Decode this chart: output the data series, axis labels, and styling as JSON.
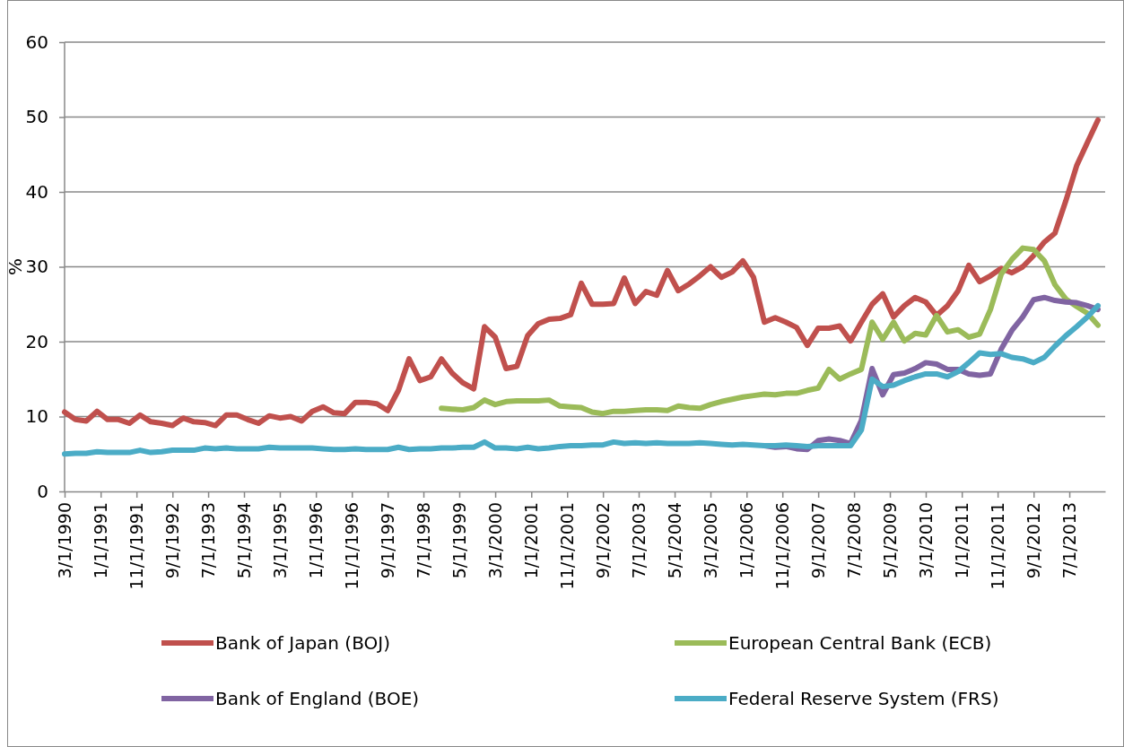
{
  "chart_data": {
    "type": "line",
    "ylabel": "%",
    "x": [
      "1990-03",
      "1990-06",
      "1990-09",
      "1990-12",
      "1991-03",
      "1991-06",
      "1991-09",
      "1991-12",
      "1992-03",
      "1992-06",
      "1992-09",
      "1992-12",
      "1993-03",
      "1993-06",
      "1993-09",
      "1993-12",
      "1994-03",
      "1994-06",
      "1994-09",
      "1994-12",
      "1995-03",
      "1995-06",
      "1995-09",
      "1995-12",
      "1996-03",
      "1996-06",
      "1996-09",
      "1996-12",
      "1997-03",
      "1997-06",
      "1997-09",
      "1997-12",
      "1998-03",
      "1998-06",
      "1998-09",
      "1998-12",
      "1999-03",
      "1999-06",
      "1999-09",
      "1999-12",
      "2000-03",
      "2000-06",
      "2000-09",
      "2000-12",
      "2001-03",
      "2001-06",
      "2001-09",
      "2001-12",
      "2002-03",
      "2002-06",
      "2002-09",
      "2002-12",
      "2003-03",
      "2003-06",
      "2003-09",
      "2003-12",
      "2004-03",
      "2004-06",
      "2004-09",
      "2004-12",
      "2005-03",
      "2005-06",
      "2005-09",
      "2005-12",
      "2006-03",
      "2006-06",
      "2006-09",
      "2006-12",
      "2007-03",
      "2007-06",
      "2007-09",
      "2007-12",
      "2008-03",
      "2008-06",
      "2008-09",
      "2008-12",
      "2009-03",
      "2009-06",
      "2009-09",
      "2009-12",
      "2010-03",
      "2010-06",
      "2010-09",
      "2010-12",
      "2011-03",
      "2011-06",
      "2011-09",
      "2011-12",
      "2012-03",
      "2012-06",
      "2012-09",
      "2012-12",
      "2013-03",
      "2013-06",
      "2013-09",
      "2013-12",
      "2014-03"
    ],
    "series": [
      {
        "name": "Bank of Japan (BOJ)",
        "color": "#c0504d",
        "values": [
          10.6,
          9.6,
          9.4,
          10.7,
          9.6,
          9.6,
          9.1,
          10.2,
          9.3,
          9.1,
          8.8,
          9.8,
          9.3,
          9.2,
          8.8,
          10.2,
          10.2,
          9.6,
          9.1,
          10.1,
          9.8,
          10.0,
          9.4,
          10.7,
          11.3,
          10.5,
          10.4,
          11.9,
          11.9,
          11.7,
          10.8,
          13.5,
          17.7,
          14.8,
          15.3,
          17.7,
          15.8,
          14.5,
          13.7,
          22.0,
          20.6,
          16.4,
          16.7,
          20.8,
          22.4,
          23.0,
          23.1,
          23.6,
          27.8,
          25.0,
          25.0,
          25.1,
          28.5,
          25.1,
          26.7,
          26.2,
          29.5,
          26.8,
          27.7,
          28.8,
          30.0,
          28.6,
          29.3,
          30.8,
          28.6,
          22.6,
          23.2,
          22.6,
          21.9,
          19.5,
          21.8,
          21.8,
          22.1,
          20.1,
          22.6,
          25.0,
          26.4,
          23.3,
          24.8,
          25.9,
          25.3,
          23.5,
          24.8,
          26.8,
          30.2,
          28.0,
          28.8,
          29.8,
          29.2,
          30.0,
          31.5,
          33.3,
          34.5,
          38.8,
          43.5,
          46.6,
          49.6
        ]
      },
      {
        "name": "European Central Bank (ECB)",
        "color": "#9bbb59",
        "values": [
          null,
          null,
          null,
          null,
          null,
          null,
          null,
          null,
          null,
          null,
          null,
          null,
          null,
          null,
          null,
          null,
          null,
          null,
          null,
          null,
          null,
          null,
          null,
          null,
          null,
          null,
          null,
          null,
          null,
          null,
          null,
          null,
          null,
          null,
          null,
          11.1,
          11.0,
          10.9,
          11.2,
          12.2,
          11.6,
          12.0,
          12.1,
          12.1,
          12.1,
          12.2,
          11.4,
          11.3,
          11.2,
          10.6,
          10.4,
          10.7,
          10.7,
          10.8,
          10.9,
          10.9,
          10.8,
          11.4,
          11.2,
          11.1,
          11.6,
          12.0,
          12.3,
          12.6,
          12.8,
          13.0,
          12.9,
          13.1,
          13.1,
          13.5,
          13.8,
          16.3,
          15.0,
          15.7,
          16.3,
          22.6,
          20.3,
          22.6,
          20.1,
          21.1,
          20.9,
          23.5,
          21.3,
          21.6,
          20.6,
          21.0,
          24.3,
          29.0,
          31.0,
          32.5,
          32.3,
          30.8,
          27.6,
          25.7,
          24.7,
          23.8,
          22.2
        ]
      },
      {
        "name": "Bank of England (BOE)",
        "color": "#8064a2",
        "values": [
          null,
          null,
          null,
          null,
          null,
          null,
          null,
          null,
          null,
          null,
          null,
          null,
          null,
          null,
          null,
          null,
          null,
          null,
          null,
          null,
          null,
          null,
          null,
          null,
          null,
          null,
          null,
          null,
          null,
          null,
          null,
          null,
          null,
          null,
          null,
          null,
          null,
          null,
          null,
          null,
          null,
          null,
          null,
          null,
          null,
          null,
          null,
          null,
          null,
          null,
          null,
          null,
          null,
          null,
          null,
          null,
          null,
          null,
          null,
          null,
          null,
          null,
          null,
          null,
          null,
          6.1,
          5.9,
          6.0,
          5.7,
          5.6,
          6.8,
          7.0,
          6.8,
          6.4,
          9.5,
          16.4,
          12.9,
          15.6,
          15.8,
          16.4,
          17.2,
          17.0,
          16.3,
          16.3,
          15.7,
          15.5,
          15.7,
          19.0,
          21.5,
          23.3,
          25.6,
          25.9,
          25.5,
          25.3,
          25.2,
          24.8,
          24.3
        ]
      },
      {
        "name": "Federal Reserve System (FRS)",
        "color": "#4bacc6",
        "values": [
          5.0,
          5.1,
          5.1,
          5.3,
          5.2,
          5.2,
          5.2,
          5.5,
          5.2,
          5.3,
          5.5,
          5.5,
          5.5,
          5.8,
          5.7,
          5.8,
          5.7,
          5.7,
          5.7,
          5.9,
          5.8,
          5.8,
          5.8,
          5.8,
          5.7,
          5.6,
          5.6,
          5.7,
          5.6,
          5.6,
          5.6,
          5.9,
          5.6,
          5.7,
          5.7,
          5.8,
          5.8,
          5.9,
          5.9,
          6.6,
          5.8,
          5.8,
          5.7,
          5.9,
          5.7,
          5.8,
          6.0,
          6.1,
          6.1,
          6.2,
          6.2,
          6.6,
          6.4,
          6.5,
          6.4,
          6.5,
          6.4,
          6.4,
          6.4,
          6.5,
          6.4,
          6.3,
          6.2,
          6.3,
          6.2,
          6.1,
          6.1,
          6.2,
          6.1,
          6.0,
          6.1,
          6.1,
          6.1,
          6.1,
          8.2,
          15.0,
          14.0,
          14.2,
          14.8,
          15.3,
          15.7,
          15.7,
          15.3,
          16.0,
          17.2,
          18.5,
          18.3,
          18.4,
          17.9,
          17.7,
          17.2,
          17.9,
          19.4,
          20.8,
          22.0,
          23.3,
          24.8
        ]
      }
    ],
    "xlim": [
      "1990-03-01",
      "2014-05-01"
    ],
    "xticks": [
      {
        "value": "1990-03-01",
        "label": "3/1/1990"
      },
      {
        "value": "1991-01-01",
        "label": "1/1/1991"
      },
      {
        "value": "1991-11-01",
        "label": "11/1/1991"
      },
      {
        "value": "1992-09-01",
        "label": "9/1/1992"
      },
      {
        "value": "1993-07-01",
        "label": "7/1/1993"
      },
      {
        "value": "1994-05-01",
        "label": "5/1/1994"
      },
      {
        "value": "1995-03-01",
        "label": "3/1/1995"
      },
      {
        "value": "1996-01-01",
        "label": "1/1/1996"
      },
      {
        "value": "1996-11-01",
        "label": "11/1/1996"
      },
      {
        "value": "1997-09-01",
        "label": "9/1/1997"
      },
      {
        "value": "1998-07-01",
        "label": "7/1/1998"
      },
      {
        "value": "1999-05-01",
        "label": "5/1/1999"
      },
      {
        "value": "2000-03-01",
        "label": "3/1/2000"
      },
      {
        "value": "2001-01-01",
        "label": "1/1/2001"
      },
      {
        "value": "2001-11-01",
        "label": "11/1/2001"
      },
      {
        "value": "2002-09-01",
        "label": "9/1/2002"
      },
      {
        "value": "2003-07-01",
        "label": "7/1/2003"
      },
      {
        "value": "2004-05-01",
        "label": "5/1/2004"
      },
      {
        "value": "2005-03-01",
        "label": "3/1/2005"
      },
      {
        "value": "2006-01-01",
        "label": "1/1/2006"
      },
      {
        "value": "2006-11-01",
        "label": "11/1/2006"
      },
      {
        "value": "2007-09-01",
        "label": "9/1/2007"
      },
      {
        "value": "2008-07-01",
        "label": "7/1/2008"
      },
      {
        "value": "2009-05-01",
        "label": "5/1/2009"
      },
      {
        "value": "2010-03-01",
        "label": "3/1/2010"
      },
      {
        "value": "2011-01-01",
        "label": "1/1/2011"
      },
      {
        "value": "2011-11-01",
        "label": "11/1/2011"
      },
      {
        "value": "2012-09-01",
        "label": "9/1/2012"
      },
      {
        "value": "2013-07-01",
        "label": "7/1/2013"
      }
    ],
    "ylim": [
      0,
      60
    ],
    "yticks": [
      0,
      10,
      20,
      30,
      40,
      50,
      60
    ],
    "grid": "y",
    "legend": "bottom",
    "line_style": "solid",
    "marker": "none"
  }
}
